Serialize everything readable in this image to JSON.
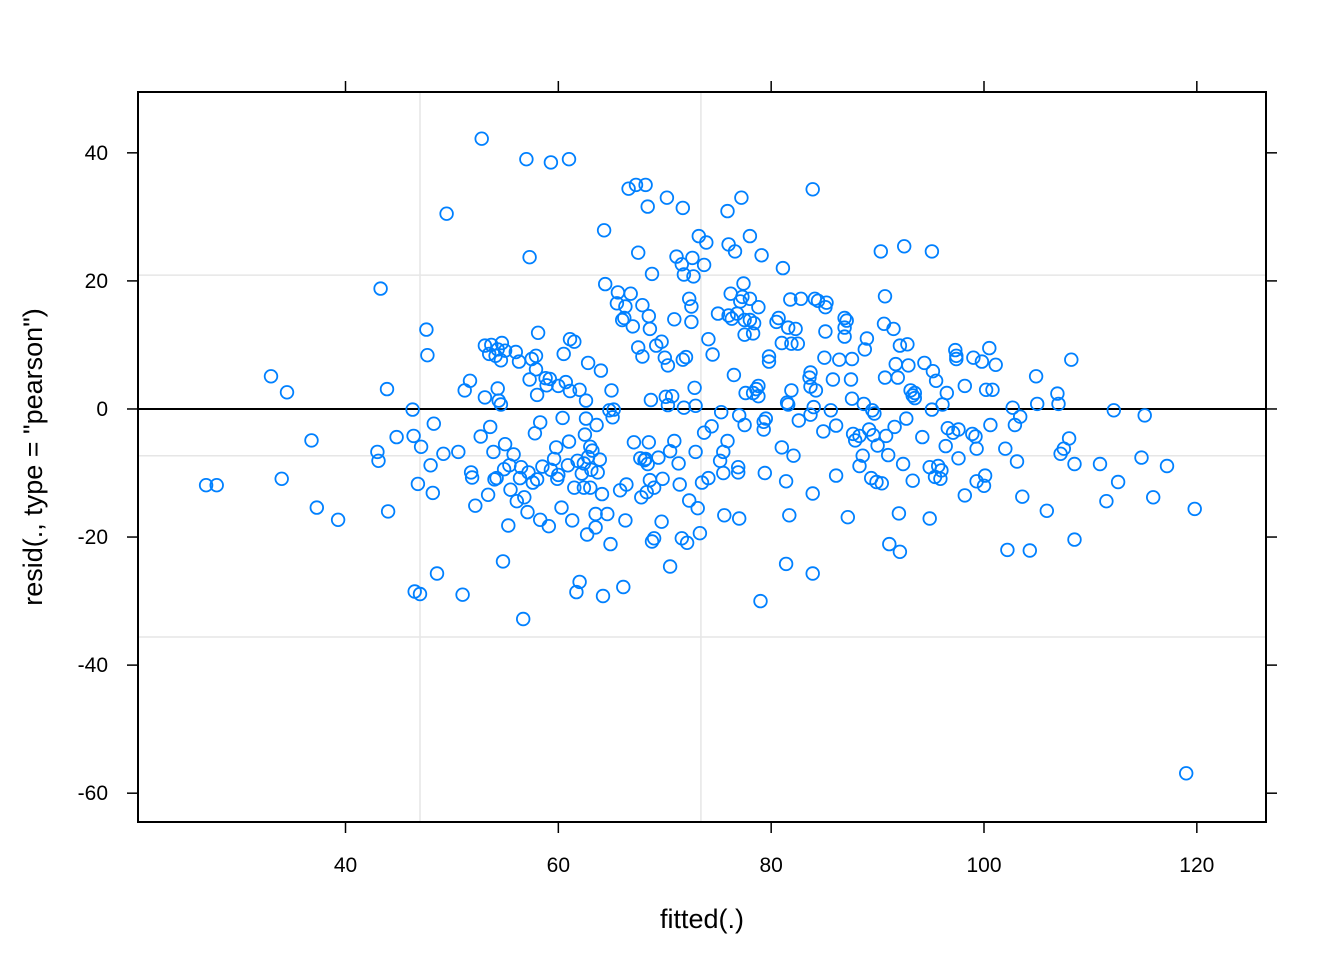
{
  "chart_data": {
    "type": "scatter",
    "title": "",
    "xlabel": "fitted(.)",
    "ylabel": "resid(., type = \"pearson\")",
    "xlim": [
      20.5,
      126.5
    ],
    "ylim": [
      -64.5,
      49.5
    ],
    "x_ticks": [
      40,
      60,
      80,
      100,
      120
    ],
    "x_tick_labels": [
      "40",
      "60",
      "80",
      "100",
      "120"
    ],
    "y_ticks": [
      -60,
      -40,
      -20,
      0,
      20,
      40
    ],
    "y_tick_labels": [
      "-60",
      "-40",
      "-20",
      "0",
      "20",
      "40"
    ],
    "reference_line_y": 0,
    "gridlines_x": [
      47,
      73.4
    ],
    "gridlines_y": [
      -35.6,
      -7.3,
      20.9
    ],
    "grid": true,
    "legend": "none",
    "point_color": "#0080FF",
    "points": [
      [
        26.9,
        -11.9
      ],
      [
        27.9,
        -11.9
      ],
      [
        33.0,
        5.1
      ],
      [
        34.0,
        -10.9
      ],
      [
        34.5,
        2.6
      ],
      [
        36.8,
        -4.9
      ],
      [
        37.3,
        -15.4
      ],
      [
        39.3,
        -17.3
      ],
      [
        43.0,
        -6.7
      ],
      [
        43.1,
        -8.1
      ],
      [
        43.3,
        18.8
      ],
      [
        43.9,
        3.1
      ],
      [
        44.0,
        -16.0
      ],
      [
        44.8,
        -4.4
      ],
      [
        46.3,
        -0.1
      ],
      [
        46.4,
        -4.2
      ],
      [
        46.5,
        -28.5
      ],
      [
        46.8,
        -11.7
      ],
      [
        47.0,
        -28.9
      ],
      [
        47.1,
        -5.9
      ],
      [
        47.6,
        12.4
      ],
      [
        47.7,
        8.4
      ],
      [
        48.0,
        -8.8
      ],
      [
        48.2,
        -13.1
      ],
      [
        48.3,
        -2.3
      ],
      [
        48.6,
        -25.7
      ],
      [
        49.2,
        -7.0
      ],
      [
        49.5,
        30.5
      ],
      [
        50.6,
        -6.7
      ],
      [
        51.0,
        -29.0
      ],
      [
        51.2,
        2.9
      ],
      [
        51.7,
        4.4
      ],
      [
        51.8,
        -9.9
      ],
      [
        51.9,
        -10.7
      ],
      [
        52.2,
        -15.1
      ],
      [
        52.7,
        -4.3
      ],
      [
        52.8,
        42.2
      ],
      [
        53.1,
        1.8
      ],
      [
        53.1,
        9.9
      ],
      [
        53.4,
        -13.4
      ],
      [
        53.5,
        8.6
      ],
      [
        53.6,
        -2.8
      ],
      [
        53.7,
        10.0
      ],
      [
        53.9,
        -6.7
      ],
      [
        54.0,
        -11.0
      ],
      [
        54.1,
        8.3
      ],
      [
        54.2,
        -10.8
      ],
      [
        54.3,
        9.3
      ],
      [
        54.3,
        3.2
      ],
      [
        54.4,
        1.3
      ],
      [
        54.6,
        7.6
      ],
      [
        54.6,
        0.7
      ],
      [
        54.7,
        10.3
      ],
      [
        54.8,
        -23.8
      ],
      [
        54.9,
        -9.4
      ],
      [
        55.0,
        -5.5
      ],
      [
        55.0,
        9.1
      ],
      [
        55.3,
        -18.2
      ],
      [
        55.4,
        -8.8
      ],
      [
        55.5,
        -12.6
      ],
      [
        55.8,
        -7.1
      ],
      [
        56.0,
        8.9
      ],
      [
        56.1,
        -14.4
      ],
      [
        56.3,
        7.4
      ],
      [
        56.4,
        -10.8
      ],
      [
        56.5,
        -9.1
      ],
      [
        56.7,
        -32.8
      ],
      [
        56.8,
        -13.8
      ],
      [
        57.0,
        39.0
      ],
      [
        57.1,
        -16.1
      ],
      [
        57.2,
        -9.9
      ],
      [
        57.3,
        23.7
      ],
      [
        57.3,
        4.6
      ],
      [
        57.5,
        7.8
      ],
      [
        57.6,
        -11.5
      ],
      [
        57.8,
        -3.8
      ],
      [
        57.9,
        8.3
      ],
      [
        57.9,
        6.2
      ],
      [
        58.0,
        -11.0
      ],
      [
        58.0,
        2.2
      ],
      [
        58.1,
        11.9
      ],
      [
        58.3,
        -2.1
      ],
      [
        58.3,
        -17.3
      ],
      [
        58.5,
        -9.0
      ],
      [
        58.8,
        4.8
      ],
      [
        58.9,
        3.7
      ],
      [
        59.1,
        -18.3
      ],
      [
        59.2,
        4.7
      ],
      [
        59.3,
        38.5
      ],
      [
        59.3,
        -9.5
      ],
      [
        59.6,
        -7.8
      ],
      [
        59.8,
        -6.0
      ],
      [
        59.9,
        -10.9
      ],
      [
        60.0,
        -10.3
      ],
      [
        60.0,
        3.6
      ],
      [
        60.3,
        -15.4
      ],
      [
        60.4,
        -1.4
      ],
      [
        60.5,
        8.6
      ],
      [
        60.7,
        4.2
      ],
      [
        60.9,
        -8.8
      ],
      [
        61.0,
        -5.1
      ],
      [
        61.0,
        39.0
      ],
      [
        61.1,
        2.8
      ],
      [
        61.1,
        10.9
      ],
      [
        61.3,
        -17.4
      ],
      [
        61.5,
        -12.3
      ],
      [
        61.5,
        10.5
      ],
      [
        61.7,
        -28.6
      ],
      [
        61.8,
        -8.1
      ],
      [
        62.0,
        -27.0
      ],
      [
        62.0,
        3.0
      ],
      [
        62.2,
        -10.1
      ],
      [
        62.4,
        -8.5
      ],
      [
        62.4,
        -12.3
      ],
      [
        62.5,
        -4.0
      ],
      [
        62.6,
        1.3
      ],
      [
        62.6,
        -1.5
      ],
      [
        62.7,
        -19.6
      ],
      [
        62.8,
        -7.5
      ],
      [
        62.8,
        7.2
      ],
      [
        63.0,
        -5.9
      ],
      [
        63.0,
        -12.3
      ],
      [
        63.1,
        -9.5
      ],
      [
        63.2,
        -6.5
      ],
      [
        63.5,
        -16.4
      ],
      [
        63.5,
        -18.5
      ],
      [
        63.6,
        -2.5
      ],
      [
        63.7,
        -9.9
      ],
      [
        63.9,
        -7.9
      ],
      [
        64.0,
        6.0
      ],
      [
        64.1,
        -13.3
      ],
      [
        64.2,
        -29.2
      ],
      [
        64.3,
        27.9
      ],
      [
        64.4,
        19.5
      ],
      [
        64.6,
        -16.4
      ],
      [
        64.8,
        -0.2
      ],
      [
        64.9,
        -21.1
      ],
      [
        65.0,
        2.9
      ],
      [
        65.1,
        -1.3
      ],
      [
        65.2,
        -0.1
      ],
      [
        65.5,
        16.5
      ],
      [
        65.6,
        18.2
      ],
      [
        65.8,
        -12.7
      ],
      [
        66.0,
        13.9
      ],
      [
        66.1,
        -27.8
      ],
      [
        66.2,
        14.2
      ],
      [
        66.3,
        -17.4
      ],
      [
        66.3,
        16.0
      ],
      [
        66.4,
        -11.8
      ],
      [
        66.6,
        34.4
      ],
      [
        66.8,
        18.0
      ],
      [
        67.0,
        12.9
      ],
      [
        67.1,
        -5.2
      ],
      [
        67.3,
        35.0
      ],
      [
        67.5,
        24.4
      ],
      [
        67.5,
        9.6
      ],
      [
        67.7,
        -7.7
      ],
      [
        67.8,
        -13.8
      ],
      [
        67.9,
        8.2
      ],
      [
        67.9,
        16.2
      ],
      [
        68.1,
        -8.0
      ],
      [
        68.2,
        35.0
      ],
      [
        68.2,
        -7.8
      ],
      [
        68.3,
        -13.0
      ],
      [
        68.4,
        -8.6
      ],
      [
        68.4,
        31.6
      ],
      [
        68.5,
        14.5
      ],
      [
        68.5,
        -5.2
      ],
      [
        68.6,
        12.5
      ],
      [
        68.6,
        -11.1
      ],
      [
        68.7,
        1.4
      ],
      [
        68.8,
        21.1
      ],
      [
        68.8,
        -20.7
      ],
      [
        69.0,
        -12.3
      ],
      [
        69.0,
        -20.2
      ],
      [
        69.2,
        9.9
      ],
      [
        69.4,
        -7.6
      ],
      [
        69.7,
        10.5
      ],
      [
        69.7,
        -17.6
      ],
      [
        69.8,
        -10.9
      ],
      [
        70.0,
        8.0
      ],
      [
        70.1,
        1.9
      ],
      [
        70.2,
        33.0
      ],
      [
        70.3,
        6.8
      ],
      [
        70.3,
        0.6
      ],
      [
        70.5,
        -6.6
      ],
      [
        70.5,
        -24.6
      ],
      [
        70.7,
        2.0
      ],
      [
        70.9,
        14.0
      ],
      [
        70.9,
        -5.0
      ],
      [
        71.1,
        23.8
      ],
      [
        71.3,
        -8.5
      ],
      [
        71.4,
        -11.8
      ],
      [
        71.6,
        22.6
      ],
      [
        71.6,
        -20.2
      ],
      [
        71.7,
        7.7
      ],
      [
        71.7,
        31.4
      ],
      [
        71.8,
        0.2
      ],
      [
        71.8,
        21.0
      ],
      [
        72.0,
        8.1
      ],
      [
        72.1,
        -20.9
      ],
      [
        72.3,
        17.2
      ],
      [
        72.3,
        -14.3
      ],
      [
        72.5,
        16.0
      ],
      [
        72.5,
        13.6
      ],
      [
        72.6,
        23.6
      ],
      [
        72.7,
        20.7
      ],
      [
        72.8,
        3.3
      ],
      [
        72.9,
        0.5
      ],
      [
        72.9,
        -6.7
      ],
      [
        73.1,
        -15.5
      ],
      [
        73.2,
        27.0
      ],
      [
        73.3,
        -19.4
      ],
      [
        73.5,
        -11.5
      ],
      [
        73.7,
        22.5
      ],
      [
        73.7,
        -3.7
      ],
      [
        73.9,
        26.0
      ],
      [
        74.1,
        10.9
      ],
      [
        74.1,
        -10.8
      ],
      [
        74.4,
        -2.7
      ],
      [
        74.5,
        8.5
      ],
      [
        75.0,
        14.9
      ],
      [
        75.2,
        -8.1
      ],
      [
        75.3,
        -0.5
      ],
      [
        75.5,
        -6.7
      ],
      [
        75.5,
        -10.0
      ],
      [
        75.6,
        -16.6
      ],
      [
        75.9,
        -5.0
      ],
      [
        75.9,
        30.9
      ],
      [
        76.0,
        14.6
      ],
      [
        76.0,
        25.7
      ],
      [
        76.2,
        18.0
      ],
      [
        76.3,
        14.1
      ],
      [
        76.5,
        5.3
      ],
      [
        76.6,
        24.6
      ],
      [
        76.8,
        14.9
      ],
      [
        76.9,
        -9.1
      ],
      [
        76.9,
        -9.9
      ],
      [
        77.0,
        -17.1
      ],
      [
        77.0,
        -1.0
      ],
      [
        77.1,
        16.8
      ],
      [
        77.2,
        33.0
      ],
      [
        77.3,
        17.5
      ],
      [
        77.4,
        19.6
      ],
      [
        77.5,
        13.9
      ],
      [
        77.5,
        11.6
      ],
      [
        77.5,
        -2.5
      ],
      [
        77.6,
        2.5
      ],
      [
        78.0,
        17.2
      ],
      [
        78.0,
        13.9
      ],
      [
        78.0,
        27.0
      ],
      [
        78.3,
        2.5
      ],
      [
        78.3,
        11.8
      ],
      [
        78.4,
        13.4
      ],
      [
        78.6,
        3.1
      ],
      [
        78.8,
        3.6
      ],
      [
        78.8,
        2.0
      ],
      [
        78.8,
        15.9
      ],
      [
        79.0,
        -30.0
      ],
      [
        79.1,
        24.0
      ],
      [
        79.3,
        -2.0
      ],
      [
        79.3,
        -3.2
      ],
      [
        79.4,
        -10.0
      ],
      [
        79.5,
        -1.5
      ],
      [
        79.8,
        7.4
      ],
      [
        79.8,
        8.2
      ],
      [
        80.5,
        13.6
      ],
      [
        80.7,
        14.2
      ],
      [
        81.0,
        10.3
      ],
      [
        81.0,
        -6.0
      ],
      [
        81.1,
        22.0
      ],
      [
        81.4,
        -24.2
      ],
      [
        81.4,
        -11.3
      ],
      [
        81.5,
        1.0
      ],
      [
        81.6,
        12.7
      ],
      [
        81.6,
        0.7
      ],
      [
        81.7,
        -16.6
      ],
      [
        81.8,
        17.1
      ],
      [
        81.9,
        10.2
      ],
      [
        81.9,
        2.9
      ],
      [
        82.1,
        -7.3
      ],
      [
        82.3,
        12.5
      ],
      [
        82.5,
        10.2
      ],
      [
        82.6,
        -1.8
      ],
      [
        82.8,
        17.2
      ],
      [
        83.6,
        4.9
      ],
      [
        83.7,
        5.7
      ],
      [
        83.7,
        -0.9
      ],
      [
        83.7,
        3.5
      ],
      [
        83.9,
        -13.2
      ],
      [
        83.9,
        -25.7
      ],
      [
        83.9,
        34.3
      ],
      [
        84.0,
        0.3
      ],
      [
        84.1,
        17.2
      ],
      [
        84.2,
        2.9
      ],
      [
        84.4,
        16.9
      ],
      [
        84.9,
        -3.5
      ],
      [
        85.0,
        8.0
      ],
      [
        85.1,
        12.1
      ],
      [
        85.1,
        15.9
      ],
      [
        85.2,
        16.6
      ],
      [
        85.6,
        -0.2
      ],
      [
        85.8,
        4.6
      ],
      [
        86.1,
        -2.6
      ],
      [
        86.1,
        -10.4
      ],
      [
        86.4,
        7.7
      ],
      [
        86.9,
        12.7
      ],
      [
        86.9,
        11.3
      ],
      [
        86.9,
        14.2
      ],
      [
        87.1,
        13.8
      ],
      [
        87.2,
        -16.9
      ],
      [
        87.5,
        4.6
      ],
      [
        87.6,
        7.8
      ],
      [
        87.6,
        1.6
      ],
      [
        87.7,
        -3.9
      ],
      [
        87.9,
        -4.9
      ],
      [
        88.3,
        -8.9
      ],
      [
        88.3,
        -4.2
      ],
      [
        88.6,
        -7.3
      ],
      [
        88.7,
        0.8
      ],
      [
        88.8,
        9.3
      ],
      [
        89.0,
        11.0
      ],
      [
        89.2,
        -3.2
      ],
      [
        89.4,
        -10.8
      ],
      [
        89.5,
        -0.2
      ],
      [
        89.6,
        -4.1
      ],
      [
        89.7,
        -0.7
      ],
      [
        89.9,
        -11.4
      ],
      [
        90.0,
        -5.7
      ],
      [
        90.3,
        24.6
      ],
      [
        90.4,
        -11.6
      ],
      [
        90.6,
        13.3
      ],
      [
        90.7,
        4.9
      ],
      [
        90.7,
        17.6
      ],
      [
        90.8,
        -4.2
      ],
      [
        91.0,
        -7.2
      ],
      [
        91.1,
        -21.1
      ],
      [
        91.5,
        12.5
      ],
      [
        91.6,
        -2.8
      ],
      [
        91.7,
        7.0
      ],
      [
        91.9,
        4.9
      ],
      [
        92.0,
        -16.3
      ],
      [
        92.1,
        9.9
      ],
      [
        92.1,
        -22.3
      ],
      [
        92.4,
        -8.6
      ],
      [
        92.5,
        25.4
      ],
      [
        92.7,
        -1.5
      ],
      [
        92.8,
        10.1
      ],
      [
        92.9,
        6.8
      ],
      [
        93.1,
        2.9
      ],
      [
        93.3,
        -11.2
      ],
      [
        93.3,
        2.1
      ],
      [
        93.5,
        2.5
      ],
      [
        93.5,
        1.7
      ],
      [
        94.2,
        -4.4
      ],
      [
        94.4,
        7.2
      ],
      [
        94.9,
        -9.1
      ],
      [
        94.9,
        -17.1
      ],
      [
        95.1,
        -0.1
      ],
      [
        95.1,
        24.6
      ],
      [
        95.2,
        5.9
      ],
      [
        95.4,
        -10.6
      ],
      [
        95.5,
        4.4
      ],
      [
        95.7,
        -8.9
      ],
      [
        95.9,
        -10.9
      ],
      [
        96.0,
        -9.6
      ],
      [
        96.1,
        0.7
      ],
      [
        96.4,
        -5.8
      ],
      [
        96.5,
        2.5
      ],
      [
        96.6,
        -3.0
      ],
      [
        97.1,
        -3.7
      ],
      [
        97.3,
        9.2
      ],
      [
        97.4,
        8.3
      ],
      [
        97.4,
        7.8
      ],
      [
        97.6,
        -3.2
      ],
      [
        97.6,
        -7.7
      ],
      [
        98.2,
        -13.5
      ],
      [
        98.2,
        3.6
      ],
      [
        98.9,
        -3.9
      ],
      [
        99.0,
        8.0
      ],
      [
        99.2,
        -4.3
      ],
      [
        99.3,
        -6.2
      ],
      [
        99.3,
        -11.3
      ],
      [
        99.8,
        7.4
      ],
      [
        100.0,
        -12.0
      ],
      [
        100.1,
        -10.4
      ],
      [
        100.2,
        3.0
      ],
      [
        100.5,
        9.5
      ],
      [
        100.6,
        -2.5
      ],
      [
        100.8,
        3.0
      ],
      [
        101.1,
        6.9
      ],
      [
        102.0,
        -6.2
      ],
      [
        102.2,
        -22.0
      ],
      [
        102.7,
        0.2
      ],
      [
        102.9,
        -2.5
      ],
      [
        103.1,
        -8.2
      ],
      [
        103.4,
        -1.2
      ],
      [
        103.6,
        -13.7
      ],
      [
        104.3,
        -22.1
      ],
      [
        104.9,
        5.1
      ],
      [
        105.0,
        0.8
      ],
      [
        105.9,
        -15.9
      ],
      [
        106.9,
        2.4
      ],
      [
        107.0,
        0.8
      ],
      [
        107.2,
        -7.0
      ],
      [
        107.5,
        -6.2
      ],
      [
        108.0,
        -4.6
      ],
      [
        108.2,
        7.7
      ],
      [
        108.5,
        -8.6
      ],
      [
        108.5,
        -20.4
      ],
      [
        110.9,
        -8.6
      ],
      [
        111.5,
        -14.4
      ],
      [
        112.2,
        -0.2
      ],
      [
        112.6,
        -11.4
      ],
      [
        114.8,
        -7.6
      ],
      [
        115.1,
        -1.0
      ],
      [
        115.9,
        -13.8
      ],
      [
        117.2,
        -8.9
      ],
      [
        119.0,
        -56.9
      ],
      [
        119.8,
        -15.6
      ]
    ]
  }
}
